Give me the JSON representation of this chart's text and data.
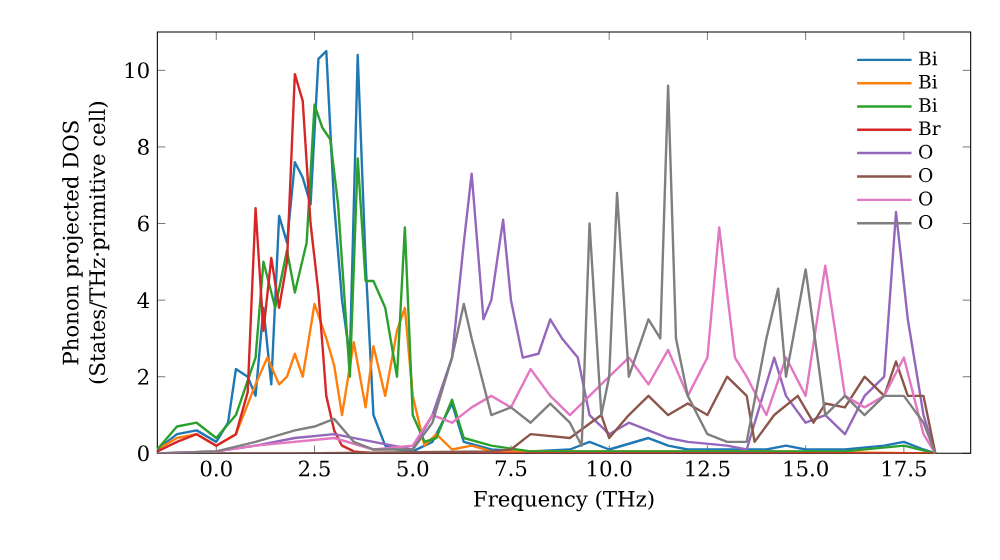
{
  "chart_data": {
    "type": "line",
    "xlabel": "Frequency (THz)",
    "ylabel": "Phonon projected DOS\n(States/THz·primitive cell)",
    "legend": "top right",
    "grid": false,
    "xlim": [
      -1.5,
      19.2
    ],
    "ylim": [
      0,
      11
    ],
    "xticks": [
      {
        "value": 0,
        "label": "0.0"
      },
      {
        "value": 2.5,
        "label": "2.5"
      },
      {
        "value": 5,
        "label": "5.0"
      },
      {
        "value": 7.5,
        "label": "7.5"
      },
      {
        "value": 10,
        "label": "10.0"
      },
      {
        "value": 12.5,
        "label": "12.5"
      },
      {
        "value": 15,
        "label": "15.0"
      },
      {
        "value": 17.5,
        "label": "17.5"
      }
    ],
    "yticks": [
      0,
      2,
      4,
      6,
      8,
      10
    ],
    "series": [
      {
        "name": "Bi",
        "color": "#1f77b4",
        "x": [
          -1.5,
          -1,
          -0.5,
          0,
          0.3,
          0.5,
          0.8,
          1.0,
          1.2,
          1.4,
          1.6,
          1.8,
          2.0,
          2.2,
          2.4,
          2.6,
          2.8,
          3.0,
          3.2,
          3.4,
          3.6,
          3.8,
          4.0,
          4.3,
          4.6,
          5.0,
          5.5,
          6.0,
          6.3,
          7,
          8,
          9,
          9.5,
          10,
          11,
          11.5,
          12,
          13,
          14,
          14.5,
          15,
          16,
          17,
          17.5,
          18,
          18.3
        ],
        "values": [
          0.1,
          0.5,
          0.6,
          0.3,
          0.8,
          2.2,
          2.0,
          1.5,
          3.8,
          1.8,
          6.2,
          5.5,
          7.6,
          7.2,
          6.5,
          10.3,
          10.5,
          6.5,
          4.0,
          2.5,
          10.4,
          5.0,
          1.0,
          0.2,
          0.1,
          0.05,
          0.3,
          1.3,
          0.3,
          0.1,
          0.05,
          0.1,
          0.3,
          0.1,
          0.4,
          0.2,
          0.1,
          null,
          0.1,
          0.2,
          0.1,
          0.1,
          0.2,
          0.3,
          0.1,
          0
        ]
      },
      {
        "name": "Bi",
        "color": "#ff7f0e",
        "x": [
          -1.5,
          -1,
          -0.5,
          0,
          0.5,
          1.0,
          1.3,
          1.6,
          1.8,
          2.0,
          2.2,
          2.5,
          2.8,
          3.0,
          3.2,
          3.5,
          3.8,
          4.0,
          4.3,
          4.6,
          4.8,
          5.0,
          5.3,
          5.6,
          6,
          6.5,
          7,
          10,
          14,
          18.3
        ],
        "values": [
          0.1,
          0.4,
          0.5,
          0.2,
          0.5,
          1.8,
          2.5,
          1.8,
          2.0,
          2.6,
          2.0,
          3.9,
          3.0,
          2.3,
          1.0,
          2.9,
          1.2,
          2.8,
          1.5,
          3.2,
          3.8,
          1.5,
          0.2,
          0.5,
          0.1,
          0.2,
          0.05,
          0.05,
          0.05,
          0
        ]
      },
      {
        "name": "Bi",
        "color": "#2ca02c",
        "x": [
          -1.5,
          -1,
          -0.5,
          0,
          0.5,
          1.0,
          1.2,
          1.5,
          1.8,
          2.0,
          2.3,
          2.5,
          2.7,
          2.9,
          3.1,
          3.4,
          3.6,
          3.8,
          4.0,
          4.3,
          4.6,
          4.8,
          5.0,
          5.3,
          5.6,
          6.0,
          6.3,
          7,
          8,
          12,
          16,
          17.5,
          18.3
        ],
        "values": [
          0.1,
          0.7,
          0.8,
          0.4,
          1.0,
          2.5,
          5.0,
          3.8,
          5.3,
          4.2,
          5.5,
          9.1,
          8.5,
          8.2,
          6.5,
          2.0,
          7.7,
          4.5,
          4.5,
          3.8,
          2.0,
          5.9,
          1.0,
          0.3,
          0.4,
          1.4,
          0.4,
          0.2,
          0.05,
          0.05,
          0.05,
          0.2,
          0
        ]
      },
      {
        "name": "Br",
        "color": "#d62728",
        "x": [
          -1.5,
          -1,
          -0.5,
          0,
          0.5,
          0.8,
          1.0,
          1.2,
          1.4,
          1.6,
          1.8,
          2.0,
          2.2,
          2.4,
          2.6,
          2.8,
          3.0,
          3.2,
          3.5,
          4,
          10,
          18.3
        ],
        "values": [
          0.05,
          0.3,
          0.5,
          0.2,
          0.5,
          1.6,
          6.4,
          3.2,
          5.1,
          3.8,
          5.0,
          9.9,
          9.2,
          6.0,
          4.2,
          1.5,
          0.6,
          0.2,
          0.05,
          0,
          0,
          0
        ]
      },
      {
        "name": "O",
        "color": "#9467bd",
        "x": [
          -1.5,
          0,
          1,
          2,
          3,
          4,
          5,
          5.5,
          6,
          6.3,
          6.5,
          6.8,
          7.0,
          7.3,
          7.5,
          7.8,
          8.2,
          8.5,
          8.8,
          9.2,
          9.5,
          10,
          10.5,
          11,
          11.5,
          12,
          13,
          13.5,
          14.2,
          14.5,
          15,
          15.5,
          16,
          16.5,
          17,
          17.3,
          17.6,
          18,
          18.3
        ],
        "values": [
          0,
          0.05,
          0.2,
          0.4,
          0.5,
          0.3,
          0.1,
          1.0,
          2.5,
          5.5,
          7.3,
          3.5,
          4.0,
          6.1,
          4.0,
          2.5,
          2.6,
          3.5,
          3.0,
          2.5,
          1.0,
          0.5,
          0.8,
          0.6,
          0.4,
          0.3,
          0.2,
          0.1,
          2.5,
          1.5,
          0.8,
          1.0,
          0.5,
          1.5,
          2.0,
          6.3,
          3.5,
          1.0,
          0
        ]
      },
      {
        "name": "O",
        "color": "#8c564b",
        "x": [
          -1.5,
          2,
          7,
          7.5,
          8,
          9,
          9.8,
          10,
          10.5,
          11,
          11.5,
          12,
          12.5,
          13,
          13.5,
          13.7,
          14.2,
          14.8,
          15.2,
          15.5,
          16,
          16.5,
          17,
          17.3,
          17.6,
          18,
          18.3
        ],
        "values": [
          0,
          0,
          0.05,
          0.1,
          0.5,
          0.4,
          1.0,
          0.4,
          1.0,
          1.5,
          1.0,
          1.3,
          1.0,
          2.0,
          1.5,
          0.3,
          1.0,
          1.5,
          0.8,
          1.3,
          1.2,
          2.0,
          1.5,
          2.4,
          1.5,
          1.5,
          0
        ]
      },
      {
        "name": "O",
        "color": "#e377c2",
        "x": [
          -1.5,
          0,
          1,
          2,
          3,
          4,
          5,
          5.5,
          6,
          6.5,
          7,
          7.5,
          8,
          8.5,
          9,
          10,
          10.5,
          11,
          11.5,
          12,
          12.5,
          12.8,
          13.2,
          13.5,
          14,
          14.5,
          15,
          15.5,
          16,
          16.5,
          17,
          17.5,
          18,
          18.3
        ],
        "values": [
          0,
          0.05,
          0.2,
          0.3,
          0.4,
          0.1,
          0.2,
          1.0,
          0.8,
          1.2,
          1.5,
          1.2,
          2.2,
          1.5,
          1.0,
          2.0,
          2.5,
          1.8,
          2.7,
          1.5,
          2.5,
          5.9,
          2.5,
          2.0,
          1.0,
          2.5,
          1.5,
          4.9,
          1.5,
          1.2,
          1.5,
          2.5,
          0.5,
          0
        ]
      },
      {
        "name": "O",
        "color": "#7f7f7f",
        "x": [
          -1.5,
          0,
          1,
          2,
          2.5,
          3,
          3.5,
          4,
          5,
          5.5,
          6,
          6.3,
          6.5,
          7,
          7.5,
          8,
          8.5,
          9,
          9.3,
          9.5,
          9.8,
          10,
          10.2,
          10.5,
          11,
          11.3,
          11.5,
          11.7,
          12,
          12.5,
          13,
          13.5,
          14,
          14.3,
          14.5,
          15,
          15.5,
          16,
          16.5,
          17,
          17.5,
          18,
          18.3
        ],
        "values": [
          0,
          0.05,
          0.3,
          0.6,
          0.7,
          0.9,
          0.3,
          0.1,
          0.1,
          0.8,
          2.5,
          3.9,
          3.0,
          1.0,
          1.2,
          0.8,
          1.3,
          0.8,
          0.2,
          6.0,
          1.0,
          2.0,
          6.8,
          2.0,
          3.5,
          3.0,
          9.6,
          3.0,
          1.5,
          0.5,
          0.3,
          0.3,
          3.0,
          4.3,
          2.0,
          4.8,
          1.0,
          1.5,
          1.0,
          1.5,
          1.5,
          0.8,
          0
        ]
      }
    ]
  }
}
